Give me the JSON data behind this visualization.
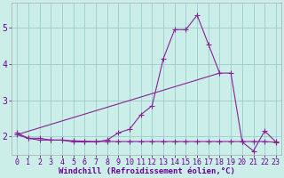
{
  "line1_x": [
    0,
    1,
    2,
    3,
    4,
    5,
    6,
    7,
    8,
    9,
    10,
    11,
    12,
    13,
    14,
    15,
    16,
    17,
    18,
    19,
    20,
    21,
    22,
    23
  ],
  "line1_y": [
    2.1,
    1.95,
    1.95,
    1.9,
    1.9,
    1.85,
    1.85,
    1.85,
    1.9,
    2.1,
    2.2,
    2.6,
    2.85,
    4.15,
    4.95,
    4.95,
    5.35,
    4.55,
    3.75,
    3.75,
    1.85,
    1.6,
    2.15,
    1.85
  ],
  "line2_x": [
    0,
    1,
    2,
    3,
    4,
    5,
    6,
    7,
    8,
    9,
    10,
    11,
    12,
    13,
    14,
    15,
    16,
    17,
    18,
    19,
    20,
    21,
    22,
    23
  ],
  "line2_y": [
    2.05,
    1.95,
    1.9,
    1.9,
    1.9,
    1.88,
    1.87,
    1.86,
    1.86,
    1.86,
    1.86,
    1.86,
    1.86,
    1.86,
    1.86,
    1.86,
    1.86,
    1.86,
    1.86,
    1.86,
    1.86,
    1.86,
    1.86,
    1.84
  ],
  "trend_x": [
    0,
    18
  ],
  "trend_y": [
    2.05,
    3.75
  ],
  "line_color": "#882299",
  "background_color": "#cceee8",
  "grid_color": "#99cccc",
  "xlabel": "Windchill (Refroidissement éolien,°C)",
  "xlim": [
    -0.5,
    23.5
  ],
  "ylim": [
    1.5,
    5.7
  ],
  "yticks": [
    2,
    3,
    4,
    5
  ],
  "xticks": [
    0,
    1,
    2,
    3,
    4,
    5,
    6,
    7,
    8,
    9,
    10,
    11,
    12,
    13,
    14,
    15,
    16,
    17,
    18,
    19,
    20,
    21,
    22,
    23
  ],
  "marker": "+",
  "markersize": 4,
  "linewidth": 0.8,
  "xlabel_fontsize": 6.5,
  "tick_fontsize": 6
}
